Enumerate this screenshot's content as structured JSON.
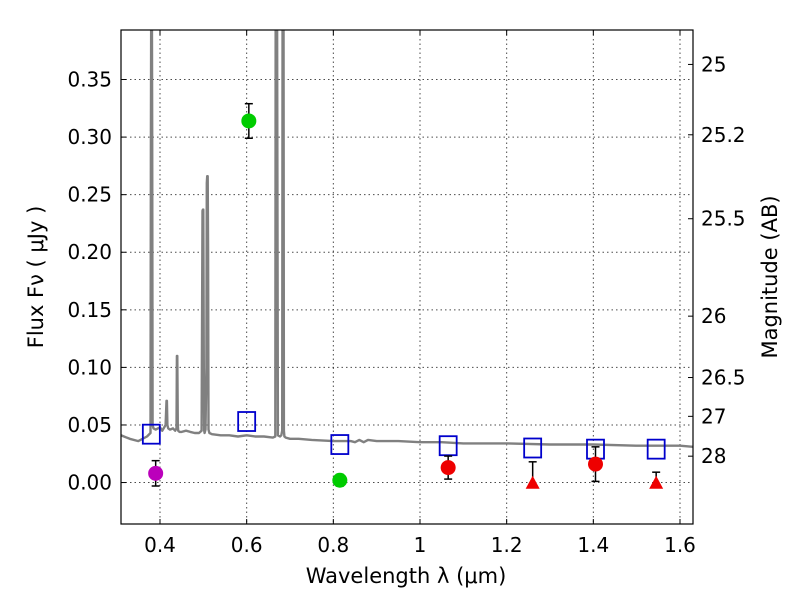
{
  "chart_data": {
    "type": "scatter",
    "title": "",
    "xlabel": "Wavelength  λ (μm)",
    "ylabel": "Flux  Fν  ( μJy )",
    "ylabel_right": "Magnitude (AB)",
    "xlim": [
      0.31,
      1.63
    ],
    "ylim": [
      -0.036,
      0.393
    ],
    "grid": true,
    "x_ticks": [
      0.4,
      0.6,
      0.8,
      1.0,
      1.2,
      1.4,
      1.6
    ],
    "x_tick_labels": [
      "0.4",
      "0.6",
      "0.8",
      "1",
      "1.2",
      "1.4",
      "1.6"
    ],
    "y_ticks": [
      0.0,
      0.05,
      0.1,
      0.15,
      0.2,
      0.25,
      0.3,
      0.35
    ],
    "y_tick_labels": [
      "0.00",
      "0.05",
      "0.10",
      "0.15",
      "0.20",
      "0.25",
      "0.30",
      "0.35"
    ],
    "right_ticks": [
      {
        "label": "25",
        "flux": 0.3631
      },
      {
        "label": "25.2",
        "flux": 0.302
      },
      {
        "label": "25.5",
        "flux": 0.2291
      },
      {
        "label": "26",
        "flux": 0.1445
      },
      {
        "label": "26.5",
        "flux": 0.0912
      },
      {
        "label": "27",
        "flux": 0.0575
      },
      {
        "label": "28",
        "flux": 0.0229
      }
    ],
    "series": [
      {
        "name": "model-spectrum",
        "kind": "line",
        "color": "#808080",
        "x": [
          0.31,
          0.33,
          0.35,
          0.37,
          0.378,
          0.379,
          0.38,
          0.381,
          0.382,
          0.383,
          0.385,
          0.39,
          0.4,
          0.405,
          0.41,
          0.413,
          0.415,
          0.416,
          0.417,
          0.419,
          0.423,
          0.43,
          0.435,
          0.438,
          0.439,
          0.44,
          0.441,
          0.442,
          0.445,
          0.45,
          0.46,
          0.47,
          0.48,
          0.49,
          0.496,
          0.498,
          0.499,
          0.5,
          0.501,
          0.502,
          0.503,
          0.505,
          0.507,
          0.508,
          0.509,
          0.51,
          0.511,
          0.512,
          0.514,
          0.52,
          0.54,
          0.56,
          0.58,
          0.6,
          0.62,
          0.64,
          0.66,
          0.666,
          0.667,
          0.668,
          0.669,
          0.67,
          0.672,
          0.677,
          0.68,
          0.682,
          0.683,
          0.684,
          0.685,
          0.686,
          0.687,
          0.69,
          0.7,
          0.72,
          0.75,
          0.8,
          0.84,
          0.85,
          0.86,
          0.87,
          0.88,
          0.9,
          0.95,
          1.0,
          1.05,
          1.1,
          1.2,
          1.3,
          1.4,
          1.5,
          1.6,
          1.63
        ],
        "y": [
          0.041,
          0.038,
          0.036,
          0.04,
          0.043,
          0.3,
          0.45,
          0.45,
          0.3,
          0.05,
          0.047,
          0.046,
          0.048,
          0.045,
          0.048,
          0.05,
          0.071,
          0.071,
          0.05,
          0.047,
          0.046,
          0.047,
          0.045,
          0.047,
          0.11,
          0.11,
          0.05,
          0.045,
          0.044,
          0.044,
          0.045,
          0.044,
          0.043,
          0.043,
          0.045,
          0.236,
          0.237,
          0.237,
          0.1,
          0.045,
          0.043,
          0.046,
          0.1,
          0.26,
          0.266,
          0.266,
          0.2,
          0.046,
          0.043,
          0.042,
          0.041,
          0.041,
          0.04,
          0.041,
          0.04,
          0.04,
          0.039,
          0.04,
          0.45,
          0.45,
          0.45,
          0.45,
          0.041,
          0.04,
          0.041,
          0.045,
          0.45,
          0.45,
          0.45,
          0.045,
          0.04,
          0.039,
          0.038,
          0.038,
          0.037,
          0.036,
          0.036,
          0.035,
          0.037,
          0.035,
          0.037,
          0.036,
          0.036,
          0.035,
          0.035,
          0.034,
          0.034,
          0.033,
          0.033,
          0.032,
          0.032,
          0.031
        ]
      },
      {
        "name": "model-photometry",
        "kind": "open-square",
        "color": "#0000cc",
        "points": [
          {
            "x": 0.38,
            "y": 0.042
          },
          {
            "x": 0.6,
            "y": 0.053
          },
          {
            "x": 0.815,
            "y": 0.033
          },
          {
            "x": 1.065,
            "y": 0.032
          },
          {
            "x": 1.26,
            "y": 0.03
          },
          {
            "x": 1.405,
            "y": 0.029
          },
          {
            "x": 1.545,
            "y": 0.029
          }
        ]
      },
      {
        "name": "observed-purple",
        "kind": "filled-circle",
        "color": "#bb00bb",
        "points": [
          {
            "x": 0.39,
            "y": 0.008,
            "err": 0.011
          }
        ]
      },
      {
        "name": "observed-green",
        "kind": "filled-circle",
        "color": "#00cc00",
        "points": [
          {
            "x": 0.605,
            "y": 0.314,
            "err": 0.015
          },
          {
            "x": 0.815,
            "y": 0.002,
            "err": 0.005
          }
        ]
      },
      {
        "name": "observed-red",
        "kind": "filled-circle",
        "color": "#ee0000",
        "points": [
          {
            "x": 1.065,
            "y": 0.013,
            "err": 0.01
          },
          {
            "x": 1.405,
            "y": 0.016,
            "err": 0.015
          }
        ]
      },
      {
        "name": "upper-limits-red",
        "kind": "triangle",
        "color": "#ee0000",
        "points": [
          {
            "x": 1.26,
            "y": -0.001,
            "err_up": 0.019
          },
          {
            "x": 1.545,
            "y": -0.001,
            "err_up": 0.01
          }
        ]
      }
    ]
  }
}
